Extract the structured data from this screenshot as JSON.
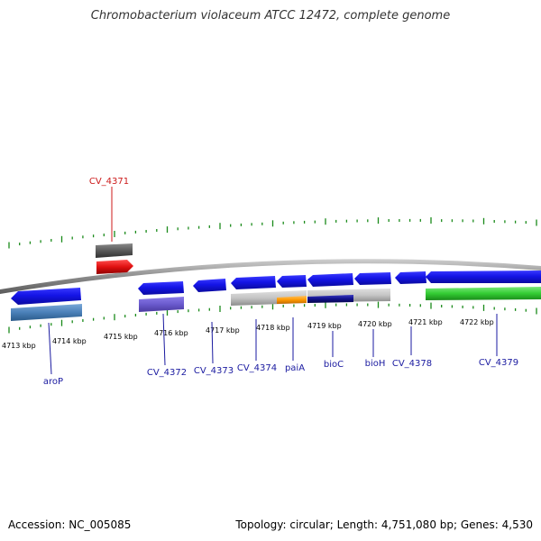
{
  "title": "Chromobacterium violaceum ATCC 12472, complete genome",
  "footer": {
    "accession": "Accession: NC_005085",
    "summary": "Topology: circular; Length: 4,751,080 bp; Genes: 4,530"
  },
  "colors": {
    "backbone": "#8c8c8c",
    "tick": "#1a8a1a",
    "cds_forward": "#1010e0",
    "label_blue": "#1a1aa0",
    "label_red": "#cc1a1a",
    "pseudo_gene": "#5a5a5a",
    "highlight_gene": "#e01010",
    "feature_green": "#33cc33",
    "feature_steelblue": "#4a80b8",
    "feature_purple": "#6a5acd",
    "feature_gray": "#bdbdbd",
    "feature_orange": "#ff9900",
    "feature_navy": "#10108a"
  },
  "scale": {
    "unit": "kbp",
    "labels": [
      "4713 kbp",
      "4714 kbp",
      "4715 kbp",
      "4716 kbp",
      "4717 kbp",
      "4718 kbp",
      "4719 kbp",
      "4720 kbp",
      "4721 kbp",
      "4722 kbp"
    ]
  },
  "genes": [
    {
      "name": "aroP",
      "strand": "reverse",
      "color": "cds_forward"
    },
    {
      "name": "CV_4371",
      "strand": "forward",
      "color": "highlight_gene"
    },
    {
      "name": "CV_4372",
      "strand": "reverse",
      "color": "cds_forward"
    },
    {
      "name": "CV_4373",
      "strand": "reverse",
      "color": "cds_forward"
    },
    {
      "name": "CV_4374",
      "strand": "reverse",
      "color": "cds_forward"
    },
    {
      "name": "paiA",
      "strand": "reverse",
      "color": "cds_forward"
    },
    {
      "name": "bioC",
      "strand": "reverse",
      "color": "cds_forward"
    },
    {
      "name": "bioH",
      "strand": "reverse",
      "color": "cds_forward"
    },
    {
      "name": "CV_4378",
      "strand": "reverse",
      "color": "cds_forward"
    },
    {
      "name": "CV_4379",
      "strand": "reverse",
      "color": "cds_forward"
    }
  ]
}
